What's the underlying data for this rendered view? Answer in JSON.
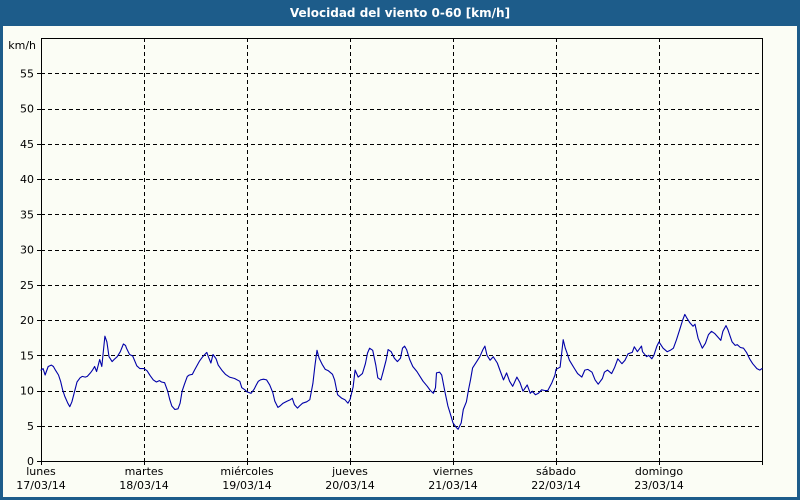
{
  "window": {
    "title": "Velocidad del viento 0-60 [km/h]"
  },
  "colors": {
    "frame_blue": "#1D5C8A",
    "background": "#FBFDF5",
    "axis_black": "#000000",
    "line_blue": "#0000A8"
  },
  "chart_data": {
    "type": "line",
    "title": "Velocidad del viento 0-60 [km/h]",
    "ylabel": "km/h",
    "ylim": [
      0,
      60
    ],
    "yticks": [
      0,
      5,
      10,
      15,
      20,
      25,
      30,
      35,
      40,
      45,
      50,
      55
    ],
    "grid": true,
    "grid_style": "dashed",
    "legend": "none",
    "x_range_days": [
      0,
      7
    ],
    "x_days": [
      {
        "label": "lunes",
        "date": "17/03/14"
      },
      {
        "label": "martes",
        "date": "18/03/14"
      },
      {
        "label": "miércoles",
        "date": "19/03/14"
      },
      {
        "label": "jueves",
        "date": "20/03/14"
      },
      {
        "label": "viernes",
        "date": "21/03/14"
      },
      {
        "label": "sábado",
        "date": "22/03/14"
      },
      {
        "label": "domingo",
        "date": "23/03/14"
      }
    ],
    "points": [
      [
        0.0,
        12.9
      ],
      [
        0.02,
        13.1
      ],
      [
        0.04,
        12.2
      ],
      [
        0.07,
        13.4
      ],
      [
        0.1,
        13.6
      ],
      [
        0.12,
        13.4
      ],
      [
        0.14,
        12.9
      ],
      [
        0.17,
        12.2
      ],
      [
        0.19,
        11.3
      ],
      [
        0.21,
        10.1
      ],
      [
        0.23,
        9.2
      ],
      [
        0.26,
        8.2
      ],
      [
        0.28,
        7.7
      ],
      [
        0.3,
        8.4
      ],
      [
        0.33,
        10.1
      ],
      [
        0.35,
        11.2
      ],
      [
        0.38,
        11.8
      ],
      [
        0.4,
        12.0
      ],
      [
        0.43,
        11.9
      ],
      [
        0.45,
        12.0
      ],
      [
        0.48,
        12.5
      ],
      [
        0.5,
        12.9
      ],
      [
        0.52,
        13.4
      ],
      [
        0.54,
        12.7
      ],
      [
        0.57,
        14.4
      ],
      [
        0.59,
        13.4
      ],
      [
        0.62,
        17.7
      ],
      [
        0.64,
        16.9
      ],
      [
        0.66,
        14.8
      ],
      [
        0.69,
        14.1
      ],
      [
        0.71,
        14.4
      ],
      [
        0.74,
        14.8
      ],
      [
        0.77,
        15.5
      ],
      [
        0.8,
        16.6
      ],
      [
        0.82,
        16.4
      ],
      [
        0.83,
        16.0
      ],
      [
        0.86,
        15.1
      ],
      [
        0.89,
        14.9
      ],
      [
        0.93,
        13.5
      ],
      [
        0.96,
        13.1
      ],
      [
        1.0,
        13.1
      ],
      [
        1.03,
        12.8
      ],
      [
        1.06,
        12.1
      ],
      [
        1.09,
        11.5
      ],
      [
        1.12,
        11.2
      ],
      [
        1.15,
        11.4
      ],
      [
        1.17,
        11.2
      ],
      [
        1.2,
        11.1
      ],
      [
        1.23,
        9.9
      ],
      [
        1.25,
        8.7
      ],
      [
        1.27,
        7.8
      ],
      [
        1.3,
        7.3
      ],
      [
        1.33,
        7.4
      ],
      [
        1.35,
        8.2
      ],
      [
        1.37,
        9.9
      ],
      [
        1.39,
        10.8
      ],
      [
        1.42,
        12.0
      ],
      [
        1.44,
        12.2
      ],
      [
        1.47,
        12.3
      ],
      [
        1.49,
        12.9
      ],
      [
        1.51,
        13.4
      ],
      [
        1.54,
        14.2
      ],
      [
        1.57,
        14.8
      ],
      [
        1.61,
        15.4
      ],
      [
        1.63,
        14.6
      ],
      [
        1.65,
        13.9
      ],
      [
        1.67,
        15.1
      ],
      [
        1.7,
        14.5
      ],
      [
        1.72,
        13.6
      ],
      [
        1.76,
        12.8
      ],
      [
        1.79,
        12.3
      ],
      [
        1.83,
        11.9
      ],
      [
        1.88,
        11.7
      ],
      [
        1.93,
        11.3
      ],
      [
        1.95,
        10.4
      ],
      [
        1.98,
        10.1
      ],
      [
        2.0,
        9.8
      ],
      [
        2.04,
        9.6
      ],
      [
        2.07,
        10.2
      ],
      [
        2.09,
        10.8
      ],
      [
        2.11,
        11.3
      ],
      [
        2.13,
        11.5
      ],
      [
        2.16,
        11.6
      ],
      [
        2.19,
        11.5
      ],
      [
        2.22,
        10.8
      ],
      [
        2.25,
        9.7
      ],
      [
        2.27,
        8.5
      ],
      [
        2.3,
        7.6
      ],
      [
        2.32,
        7.8
      ],
      [
        2.35,
        8.2
      ],
      [
        2.39,
        8.5
      ],
      [
        2.42,
        8.7
      ],
      [
        2.44,
        8.9
      ],
      [
        2.46,
        8.0
      ],
      [
        2.49,
        7.5
      ],
      [
        2.51,
        7.8
      ],
      [
        2.54,
        8.2
      ],
      [
        2.58,
        8.4
      ],
      [
        2.61,
        8.7
      ],
      [
        2.64,
        11.0
      ],
      [
        2.66,
        13.6
      ],
      [
        2.68,
        15.7
      ],
      [
        2.7,
        14.6
      ],
      [
        2.73,
        13.7
      ],
      [
        2.76,
        13.0
      ],
      [
        2.79,
        12.8
      ],
      [
        2.83,
        12.3
      ],
      [
        2.85,
        11.5
      ],
      [
        2.88,
        9.4
      ],
      [
        2.92,
        8.9
      ],
      [
        2.95,
        8.7
      ],
      [
        2.98,
        8.2
      ],
      [
        3.0,
        8.7
      ],
      [
        3.03,
        10.5
      ],
      [
        3.05,
        12.9
      ],
      [
        3.08,
        11.9
      ],
      [
        3.12,
        12.4
      ],
      [
        3.15,
        13.8
      ],
      [
        3.17,
        15.3
      ],
      [
        3.19,
        16.0
      ],
      [
        3.22,
        15.7
      ],
      [
        3.25,
        13.6
      ],
      [
        3.27,
        11.8
      ],
      [
        3.3,
        11.5
      ],
      [
        3.32,
        12.6
      ],
      [
        3.35,
        14.3
      ],
      [
        3.37,
        15.8
      ],
      [
        3.4,
        15.5
      ],
      [
        3.43,
        14.6
      ],
      [
        3.46,
        14.1
      ],
      [
        3.49,
        14.6
      ],
      [
        3.51,
        16.0
      ],
      [
        3.53,
        16.3
      ],
      [
        3.55,
        15.8
      ],
      [
        3.58,
        14.4
      ],
      [
        3.61,
        13.4
      ],
      [
        3.65,
        12.7
      ],
      [
        3.68,
        12.0
      ],
      [
        3.71,
        11.3
      ],
      [
        3.75,
        10.6
      ],
      [
        3.78,
        10.0
      ],
      [
        3.81,
        9.6
      ],
      [
        3.83,
        10.4
      ],
      [
        3.84,
        12.5
      ],
      [
        3.87,
        12.6
      ],
      [
        3.89,
        12.2
      ],
      [
        3.92,
        9.9
      ],
      [
        3.95,
        7.8
      ],
      [
        3.97,
        6.9
      ],
      [
        4.0,
        5.4
      ],
      [
        4.03,
        4.8
      ],
      [
        4.05,
        4.5
      ],
      [
        4.08,
        5.4
      ],
      [
        4.1,
        7.3
      ],
      [
        4.13,
        8.4
      ],
      [
        4.15,
        10.1
      ],
      [
        4.17,
        11.5
      ],
      [
        4.19,
        13.2
      ],
      [
        4.23,
        14.1
      ],
      [
        4.26,
        14.8
      ],
      [
        4.29,
        15.8
      ],
      [
        4.31,
        16.3
      ],
      [
        4.33,
        15.0
      ],
      [
        4.36,
        14.3
      ],
      [
        4.39,
        14.8
      ],
      [
        4.43,
        13.9
      ],
      [
        4.46,
        12.7
      ],
      [
        4.49,
        11.5
      ],
      [
        4.52,
        12.5
      ],
      [
        4.55,
        11.3
      ],
      [
        4.58,
        10.6
      ],
      [
        4.62,
        11.9
      ],
      [
        4.65,
        11.1
      ],
      [
        4.68,
        9.9
      ],
      [
        4.72,
        10.8
      ],
      [
        4.75,
        9.6
      ],
      [
        4.77,
        9.9
      ],
      [
        4.8,
        9.4
      ],
      [
        4.83,
        9.6
      ],
      [
        4.86,
        10.1
      ],
      [
        4.89,
        10.0
      ],
      [
        4.92,
        10.0
      ],
      [
        4.96,
        11.1
      ],
      [
        4.99,
        12.2
      ],
      [
        5.0,
        13.0
      ],
      [
        5.04,
        13.3
      ],
      [
        5.07,
        17.2
      ],
      [
        5.09,
        16.0
      ],
      [
        5.11,
        15.2
      ],
      [
        5.13,
        14.3
      ],
      [
        5.15,
        13.8
      ],
      [
        5.18,
        13.1
      ],
      [
        5.21,
        12.4
      ],
      [
        5.25,
        11.9
      ],
      [
        5.28,
        12.9
      ],
      [
        5.31,
        13.0
      ],
      [
        5.35,
        12.6
      ],
      [
        5.38,
        11.5
      ],
      [
        5.41,
        10.9
      ],
      [
        5.45,
        11.7
      ],
      [
        5.47,
        12.6
      ],
      [
        5.5,
        12.9
      ],
      [
        5.54,
        12.4
      ],
      [
        5.57,
        13.3
      ],
      [
        5.6,
        14.5
      ],
      [
        5.64,
        13.8
      ],
      [
        5.67,
        14.3
      ],
      [
        5.7,
        15.2
      ],
      [
        5.74,
        15.4
      ],
      [
        5.76,
        16.2
      ],
      [
        5.79,
        15.5
      ],
      [
        5.83,
        16.3
      ],
      [
        5.84,
        15.5
      ],
      [
        5.88,
        14.8
      ],
      [
        5.9,
        15.0
      ],
      [
        5.93,
        14.5
      ],
      [
        5.95,
        15.0
      ],
      [
        5.98,
        16.3
      ],
      [
        6.0,
        16.9
      ],
      [
        6.04,
        16.0
      ],
      [
        6.08,
        15.5
      ],
      [
        6.11,
        15.7
      ],
      [
        6.14,
        16.0
      ],
      [
        6.17,
        17.2
      ],
      [
        6.2,
        18.6
      ],
      [
        6.23,
        20.0
      ],
      [
        6.25,
        20.8
      ],
      [
        6.27,
        20.3
      ],
      [
        6.3,
        19.6
      ],
      [
        6.33,
        19.1
      ],
      [
        6.35,
        19.4
      ],
      [
        6.38,
        17.4
      ],
      [
        6.42,
        16.0
      ],
      [
        6.45,
        16.7
      ],
      [
        6.48,
        17.9
      ],
      [
        6.51,
        18.4
      ],
      [
        6.54,
        18.1
      ],
      [
        6.57,
        17.6
      ],
      [
        6.6,
        17.1
      ],
      [
        6.62,
        18.4
      ],
      [
        6.65,
        19.2
      ],
      [
        6.67,
        18.6
      ],
      [
        6.71,
        16.9
      ],
      [
        6.74,
        16.4
      ],
      [
        6.76,
        16.5
      ],
      [
        6.79,
        16.1
      ],
      [
        6.82,
        16.0
      ],
      [
        6.85,
        15.4
      ],
      [
        6.88,
        14.5
      ],
      [
        6.91,
        13.8
      ],
      [
        6.95,
        13.1
      ],
      [
        6.98,
        12.9
      ],
      [
        7.0,
        13.1
      ]
    ]
  }
}
